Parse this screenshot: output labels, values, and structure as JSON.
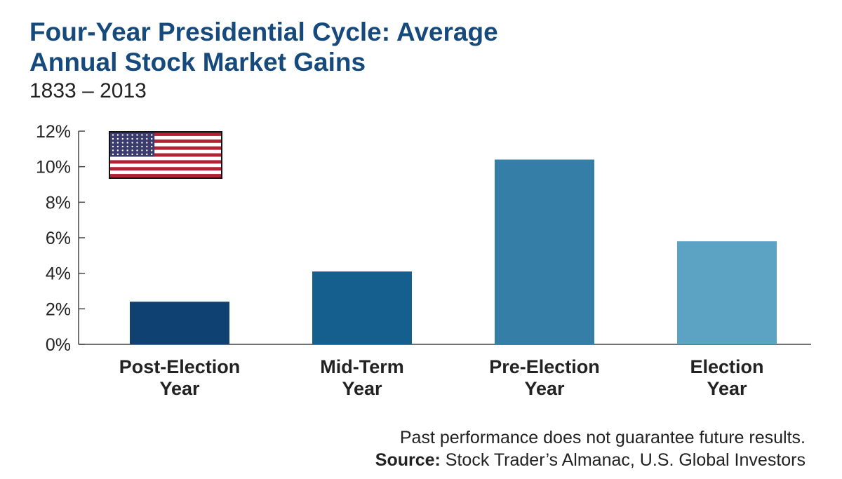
{
  "header": {
    "title_line1": "Four-Year Presidential Cycle: Average",
    "title_line2": "Annual Stock Market Gains",
    "subtitle": "1833 – 2013"
  },
  "footer": {
    "disclaimer": "Past performance does not guarantee future results.",
    "source_label": "Source:",
    "source_text": " Stock Trader’s Almanac, U.S. Global Investors"
  },
  "flag_icon": "us-flag-icon",
  "chart_data": {
    "type": "bar",
    "title": "Four-Year Presidential Cycle: Average Annual Stock Market Gains",
    "subtitle": "1833 – 2013",
    "categories": [
      "Post-Election Year",
      "Mid-Term Year",
      "Pre-Election Year",
      "Election Year"
    ],
    "category_lines": [
      [
        "Post-Election",
        "Year"
      ],
      [
        "Mid-Term",
        "Year"
      ],
      [
        "Pre-Election",
        "Year"
      ],
      [
        "Election",
        "Year"
      ]
    ],
    "values": [
      2.4,
      4.1,
      10.4,
      5.8
    ],
    "unit": "%",
    "ylim": [
      0,
      12
    ],
    "yticks": [
      "0%",
      "2%",
      "4%",
      "6%",
      "8%",
      "10%",
      "12%"
    ],
    "grid": false,
    "colors": [
      "#0f4273",
      "#155f8e",
      "#347ea7",
      "#5ca3c3"
    ]
  }
}
